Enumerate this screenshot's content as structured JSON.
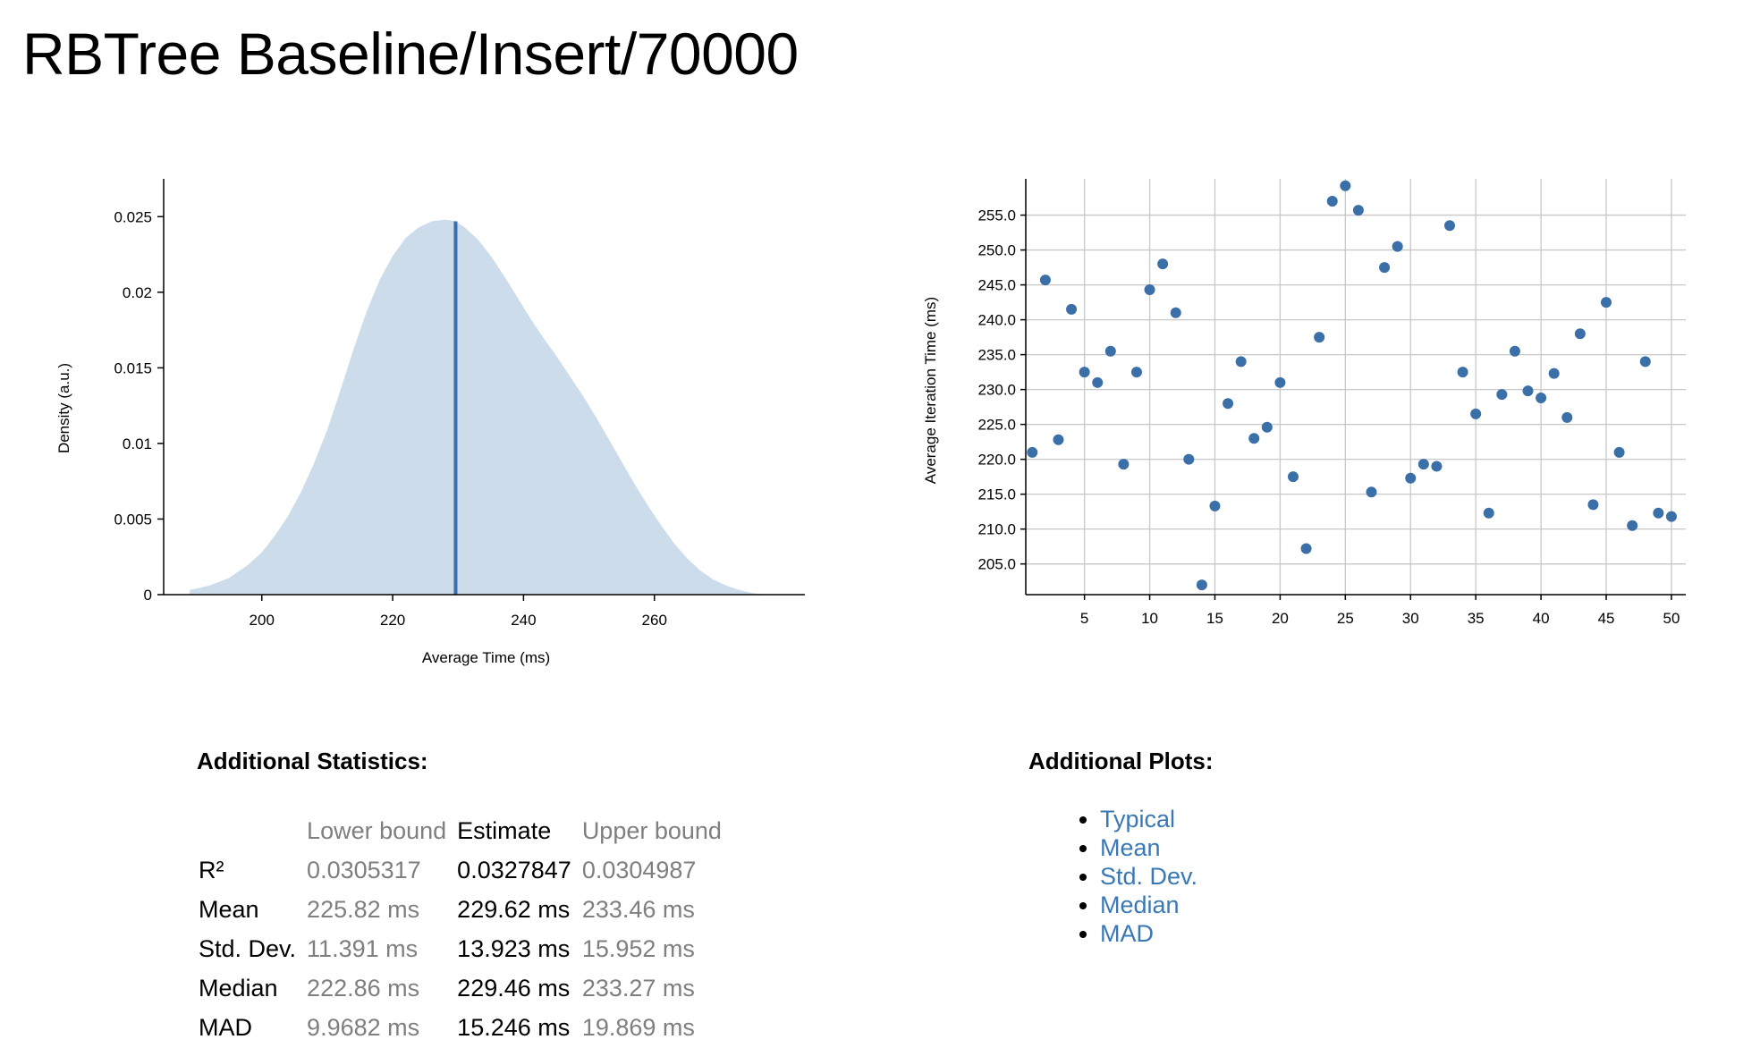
{
  "page": {
    "title": "RBTree Baseline/Insert/70000"
  },
  "chart_data": [
    {
      "type": "area",
      "xlabel": "Average Time (ms)",
      "ylabel": "Density (a.u.)",
      "xlim": [
        185,
        283
      ],
      "ylim": [
        0,
        0.0275
      ],
      "x_ticks": [
        200,
        220,
        240,
        260
      ],
      "y_ticks": [
        {
          "value": 0,
          "label": "0"
        },
        {
          "value": 0.005,
          "label": "0.005"
        },
        {
          "value": 0.01,
          "label": "0.01"
        },
        {
          "value": 0.015,
          "label": "0.015"
        },
        {
          "value": 0.02,
          "label": "0.02"
        },
        {
          "value": 0.025,
          "label": "0.025"
        }
      ],
      "density_x": [
        189,
        192,
        195,
        198,
        200,
        202,
        204,
        206,
        208,
        210,
        212,
        214,
        216,
        218,
        220,
        222,
        224,
        226,
        228,
        229.6,
        231,
        233,
        235,
        237,
        239,
        241,
        243,
        245,
        247,
        249,
        251,
        253,
        255,
        257,
        259,
        261,
        263,
        265,
        267,
        269,
        271,
        273,
        275,
        277
      ],
      "density_y": [
        0.0003,
        0.0006,
        0.0011,
        0.002,
        0.0028,
        0.0039,
        0.0052,
        0.0068,
        0.0087,
        0.0109,
        0.0135,
        0.0162,
        0.0187,
        0.0208,
        0.0224,
        0.0236,
        0.0243,
        0.0247,
        0.0248,
        0.0247,
        0.0243,
        0.0235,
        0.0224,
        0.0211,
        0.0197,
        0.0183,
        0.017,
        0.0158,
        0.0145,
        0.0132,
        0.0118,
        0.0103,
        0.0088,
        0.0073,
        0.0059,
        0.0046,
        0.0034,
        0.0024,
        0.0016,
        0.001,
        0.0006,
        0.0003,
        0.0001,
        0.0
      ],
      "mean_line_x": 229.62,
      "fill_color": "#cddceb",
      "line_color": "#3a6fa8"
    },
    {
      "type": "scatter",
      "xlabel": "",
      "ylabel": "Average Iteration Time (ms)",
      "xlim": [
        0.5,
        51.1
      ],
      "ylim": [
        200.6,
        260.2
      ],
      "x_ticks": [
        5,
        10,
        15,
        20,
        25,
        30,
        35,
        40,
        45,
        50
      ],
      "y_ticks": [
        {
          "value": 205,
          "label": "205.0"
        },
        {
          "value": 210,
          "label": "210.0"
        },
        {
          "value": 215,
          "label": "215.0"
        },
        {
          "value": 220,
          "label": "220.0"
        },
        {
          "value": 225,
          "label": "225.0"
        },
        {
          "value": 230,
          "label": "230.0"
        },
        {
          "value": 235,
          "label": "235.0"
        },
        {
          "value": 240,
          "label": "240.0"
        },
        {
          "value": 245,
          "label": "245.0"
        },
        {
          "value": 250,
          "label": "250.0"
        },
        {
          "value": 255,
          "label": "255.0"
        }
      ],
      "grid": true,
      "x": [
        1,
        2,
        3,
        4,
        5,
        6,
        7,
        8,
        9,
        10,
        11,
        12,
        13,
        14,
        15,
        16,
        17,
        18,
        19,
        20,
        21,
        22,
        23,
        24,
        25,
        26,
        27,
        28,
        29,
        30,
        31,
        32,
        33,
        34,
        35,
        36,
        37,
        38,
        39,
        40,
        41,
        42,
        43,
        44,
        45,
        46,
        47,
        48,
        49,
        50
      ],
      "y": [
        221.0,
        245.7,
        222.8,
        241.5,
        232.5,
        231.0,
        235.5,
        219.3,
        232.5,
        244.3,
        248.0,
        241.0,
        220.0,
        202.0,
        213.3,
        228.0,
        234.0,
        223.0,
        224.6,
        231.0,
        217.5,
        207.2,
        237.5,
        257.0,
        259.2,
        255.7,
        215.3,
        247.5,
        250.5,
        217.3,
        219.3,
        219.0,
        253.5,
        232.5,
        226.5,
        212.3,
        229.3,
        235.5,
        229.8,
        228.8,
        232.3,
        226.0,
        238.0,
        213.5,
        242.5,
        221.0,
        210.5,
        234.0,
        212.3,
        211.8
      ],
      "point_color": "#3a6fa8"
    }
  ],
  "stats": {
    "heading": "Additional Statistics:",
    "columns": [
      "",
      "Lower bound",
      "Estimate",
      "Upper bound"
    ],
    "rows": [
      {
        "label": "R²",
        "lower": "0.0305317",
        "estimate": "0.0327847",
        "upper": "0.0304987"
      },
      {
        "label": "Mean",
        "lower": "225.82 ms",
        "estimate": "229.62 ms",
        "upper": "233.46 ms"
      },
      {
        "label": "Std. Dev.",
        "lower": "11.391 ms",
        "estimate": "13.923 ms",
        "upper": "15.952 ms"
      },
      {
        "label": "Median",
        "lower": "222.86 ms",
        "estimate": "229.46 ms",
        "upper": "233.27 ms"
      },
      {
        "label": "MAD",
        "lower": "9.9682 ms",
        "estimate": "15.246 ms",
        "upper": "19.869 ms"
      }
    ]
  },
  "plots": {
    "heading": "Additional Plots:",
    "links": [
      "Typical",
      "Mean",
      "Std. Dev.",
      "Median",
      "MAD"
    ]
  }
}
